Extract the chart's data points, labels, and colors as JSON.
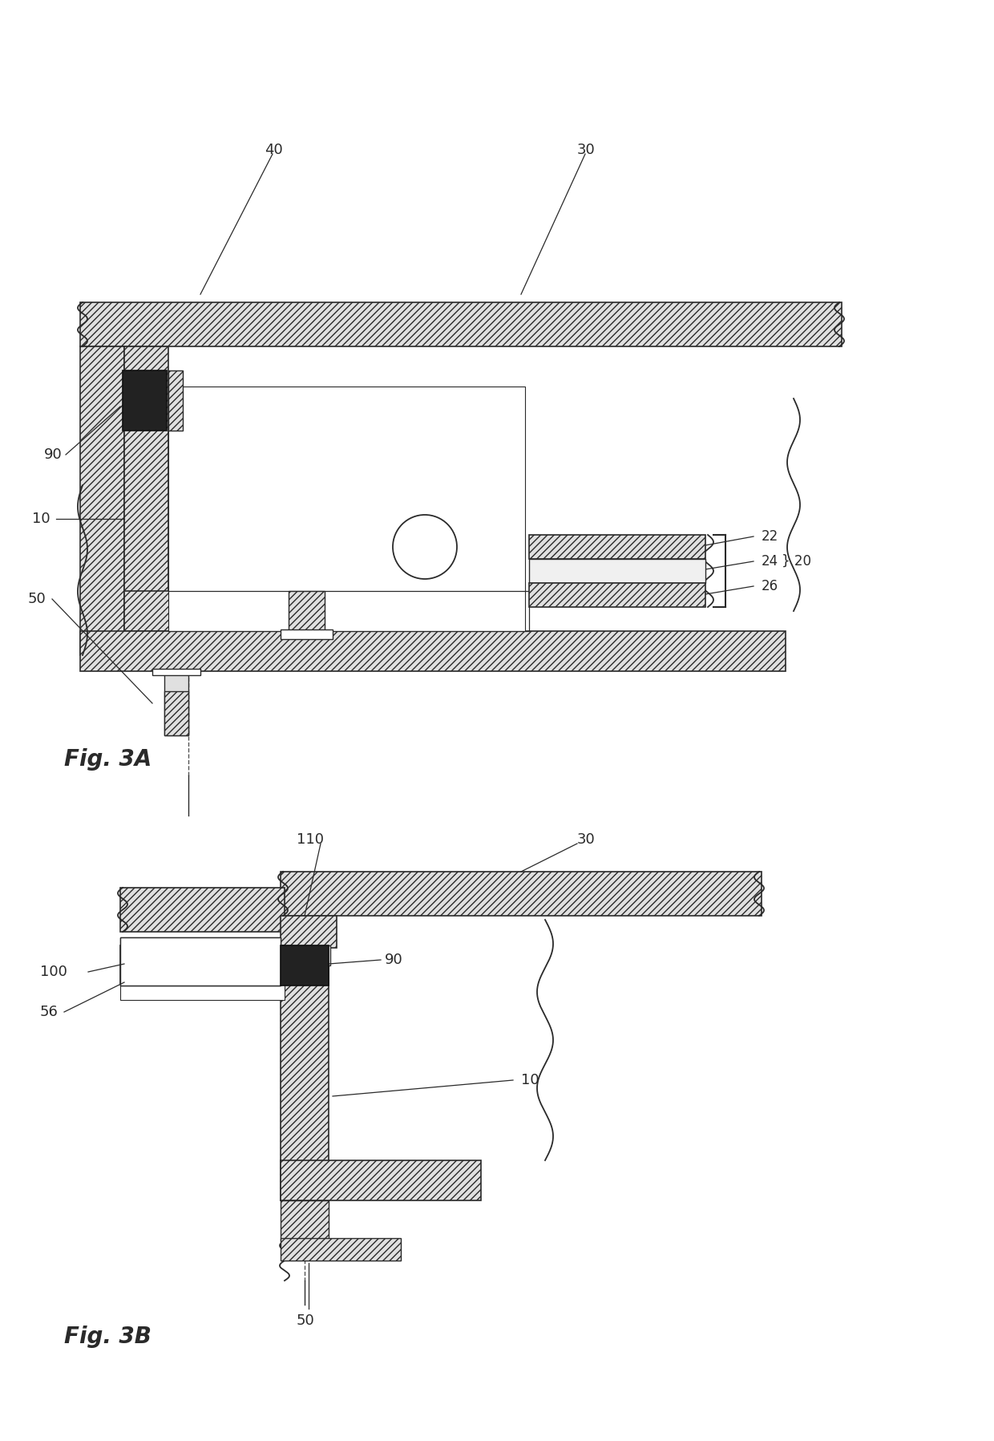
{
  "fig_width": 12.4,
  "fig_height": 17.97,
  "dpi": 100,
  "bg": "#ffffff",
  "lc": "#2a2a2a",
  "hatch_fc": "#e0e0e0",
  "dark_fc": "#222222",
  "fig3a_label": "Fig. 3A",
  "fig3b_label": "Fig. 3B"
}
